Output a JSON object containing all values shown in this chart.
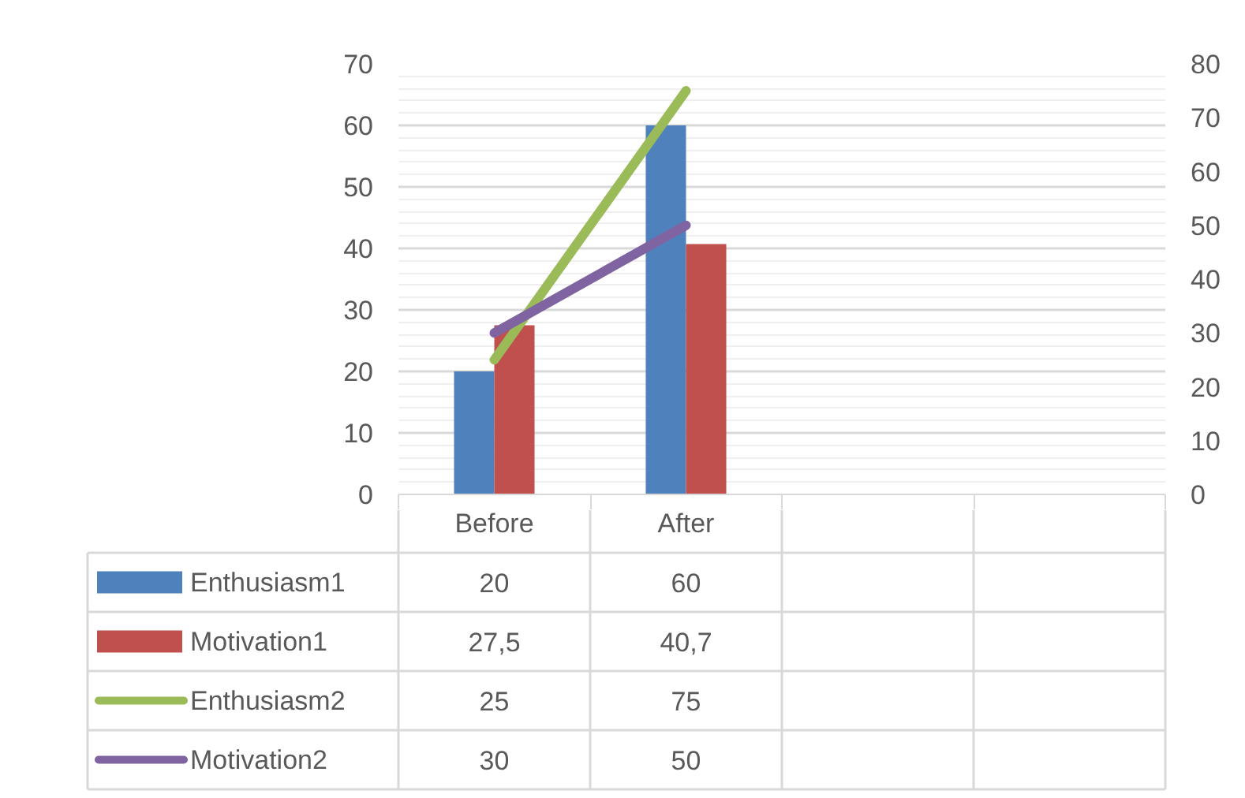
{
  "chart_data": {
    "type": "bar",
    "categories": [
      "Before",
      "After",
      null,
      null
    ],
    "series": [
      {
        "name": "Enthusiasm1",
        "color": "#4f81bd",
        "values": [
          20,
          60,
          null,
          null
        ],
        "value_labels": [
          "20",
          "60",
          null,
          null
        ]
      },
      {
        "name": "Motivation1",
        "color": "#c0504d",
        "values": [
          27.5,
          40.7,
          null,
          null
        ],
        "value_labels": [
          "27,5",
          "40,7",
          null,
          null
        ]
      },
      {
        "name": "Enthusiasm2",
        "type": "line",
        "axis": "y2",
        "color": "#9bbb59",
        "values": [
          25,
          75,
          null,
          null
        ],
        "value_labels": [
          "25",
          "75",
          null,
          null
        ]
      },
      {
        "name": "Motivation2",
        "type": "line",
        "axis": "y2",
        "color": "#8064a2",
        "values": [
          30,
          50,
          null,
          null
        ],
        "value_labels": [
          "30",
          "50",
          null,
          null
        ]
      }
    ],
    "ylim": [
      0,
      70
    ],
    "yticks": [
      0,
      10,
      20,
      30,
      40,
      50,
      60,
      70
    ],
    "y2lim": [
      0,
      80
    ],
    "y2ticks": [
      0,
      10,
      20,
      30,
      40,
      50,
      60,
      70,
      80
    ],
    "grid": "y",
    "legend": "bottom"
  }
}
